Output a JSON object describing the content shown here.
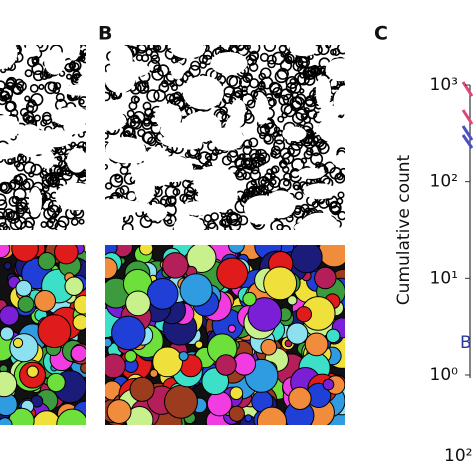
{
  "figure": {
    "panel_b": "B",
    "panel_c": "C",
    "plot": {
      "y_label": "Cumulative count",
      "ylog": true,
      "ylim": [
        1,
        1000
      ],
      "yticks": [
        {
          "value": 1,
          "label": "10⁰"
        },
        {
          "value": 10,
          "label": "10¹"
        },
        {
          "value": 100,
          "label": "10²"
        },
        {
          "value": 1000,
          "label": "10³"
        }
      ],
      "xticks": [
        {
          "value": 100,
          "label": "10²"
        }
      ],
      "annotation": "B",
      "annotation_color": "#2b3a9a"
    }
  }
}
